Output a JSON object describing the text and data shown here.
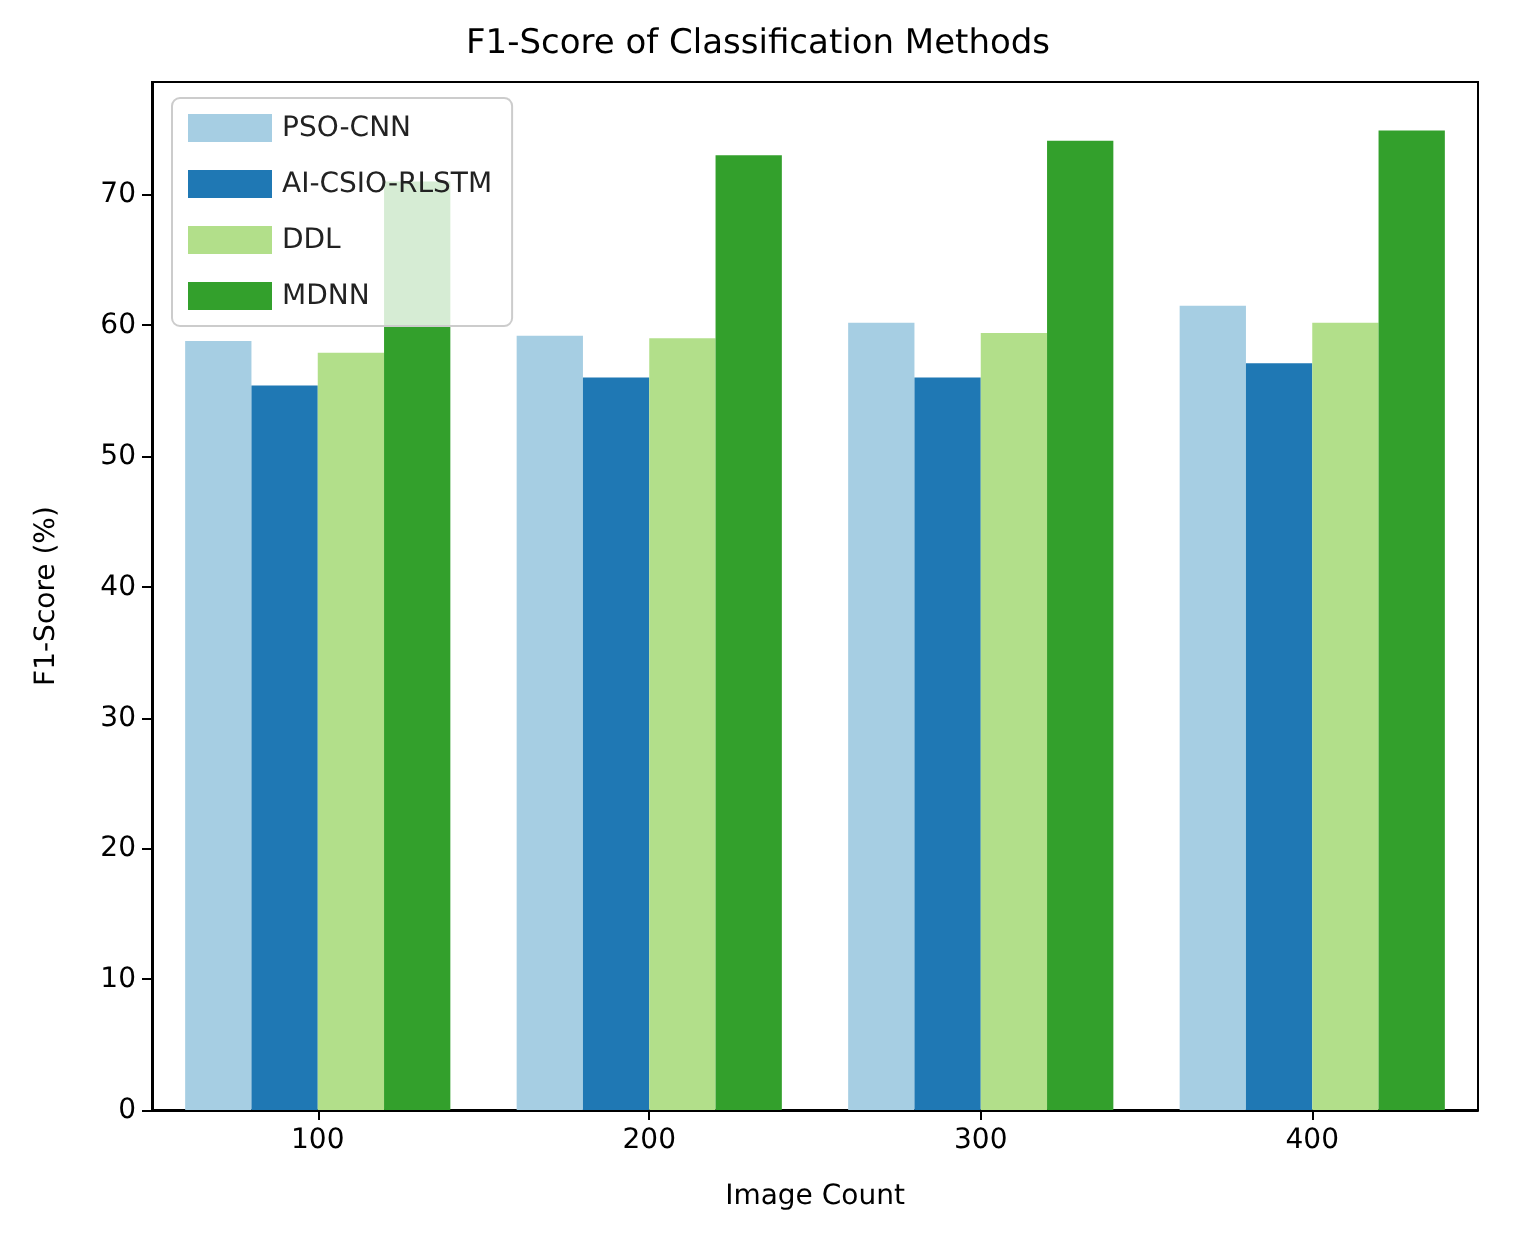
{
  "chart_data": {
    "type": "bar",
    "title": "F1-Score of Classification Methods",
    "xlabel": "Image Count",
    "ylabel": "F1-Score (%)",
    "categories": [
      "100",
      "200",
      "300",
      "400"
    ],
    "series": [
      {
        "name": "PSO-CNN",
        "color": "#a6cee3",
        "values": [
          58.8,
          59.2,
          60.2,
          61.5
        ]
      },
      {
        "name": "AI-CSIO-RLSTM",
        "color": "#1f78b4",
        "values": [
          55.4,
          56.0,
          56.0,
          57.1
        ]
      },
      {
        "name": "DDL",
        "color": "#b2df8a",
        "values": [
          57.9,
          59.0,
          59.4,
          60.2
        ]
      },
      {
        "name": "MDNN",
        "color": "#33a02c",
        "values": [
          71.0,
          73.0,
          74.1,
          74.9
        ]
      }
    ],
    "ylim": [
      0,
      78.6
    ],
    "yticks": [
      0,
      10,
      20,
      30,
      40,
      50,
      60,
      70
    ],
    "grid": false,
    "legend": "top left"
  }
}
